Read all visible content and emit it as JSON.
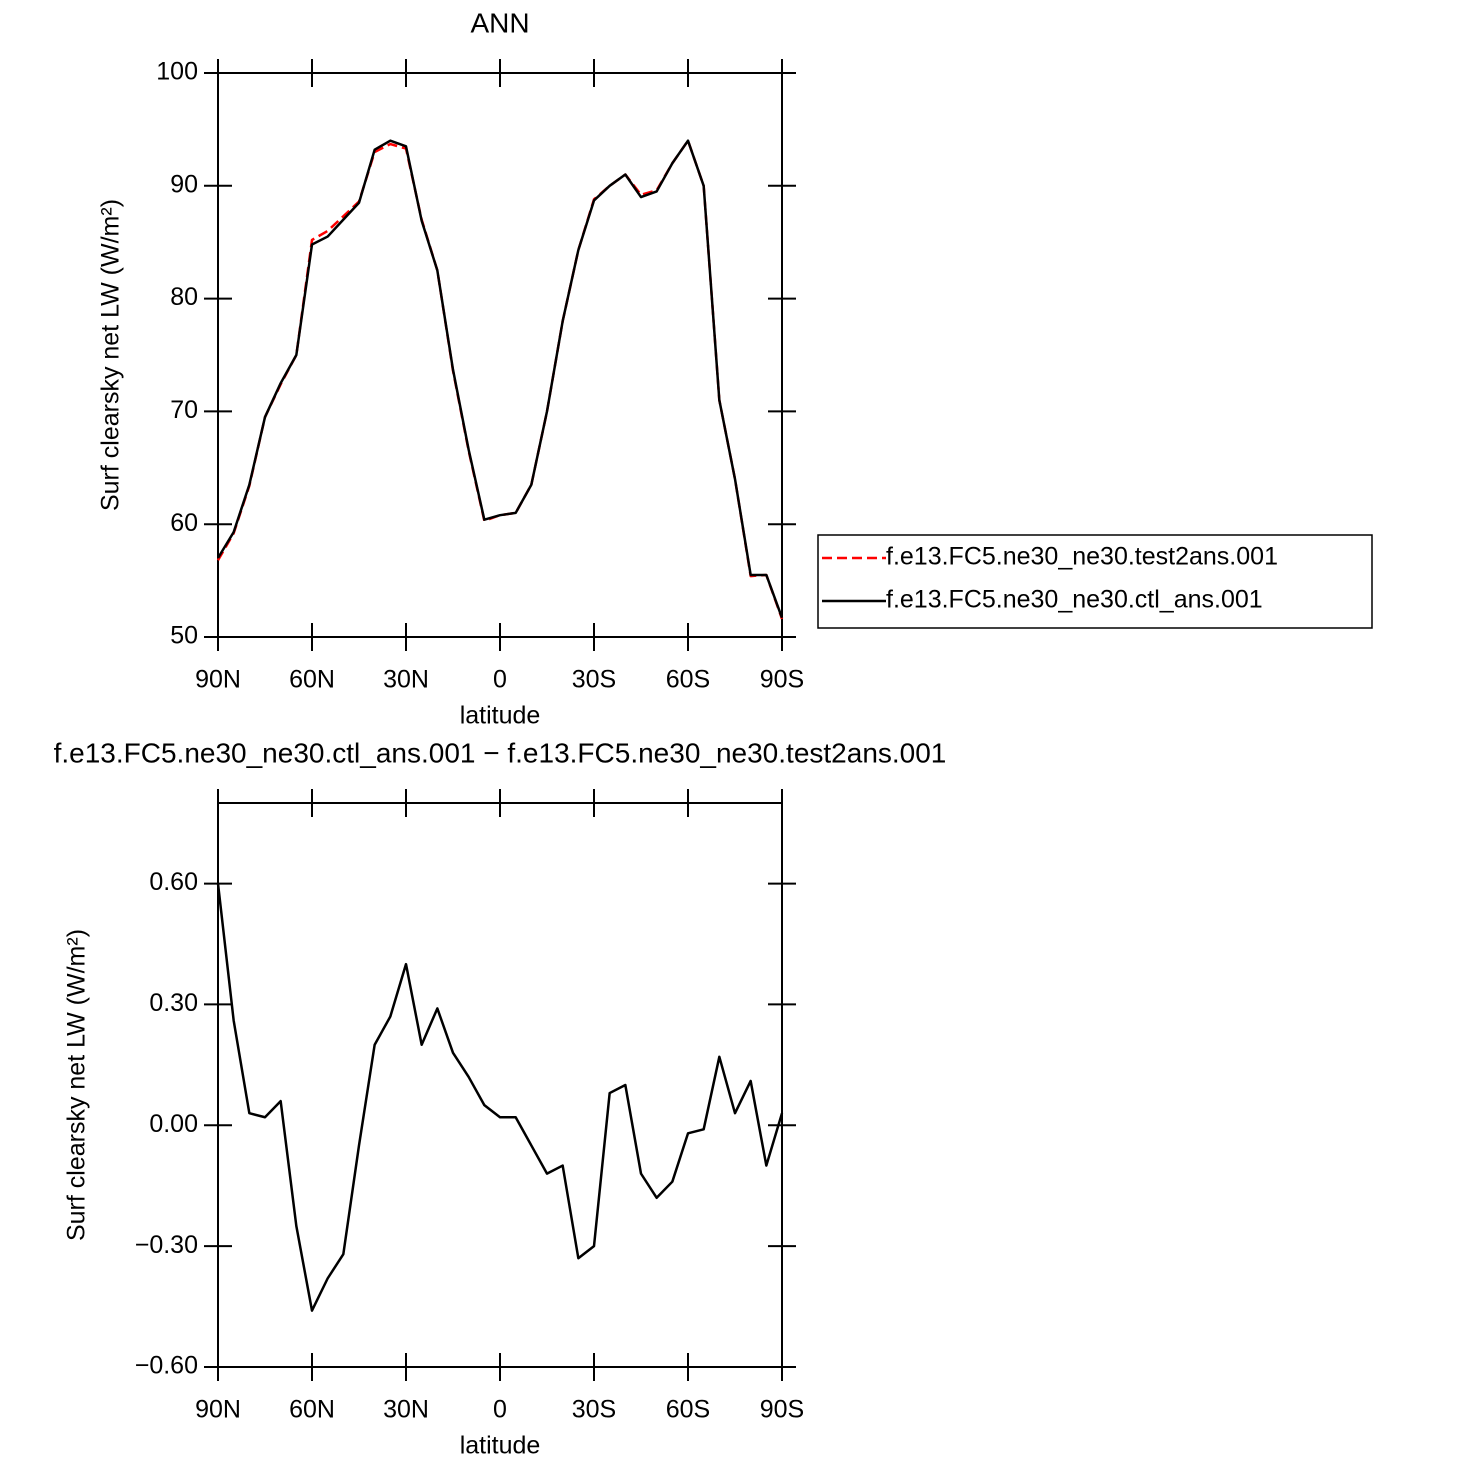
{
  "chart_data": [
    {
      "type": "line",
      "title": "ANN",
      "xlabel": "latitude",
      "ylabel": "Surf clearsky net LW (W/m²)",
      "x": [
        90,
        85,
        80,
        75,
        70,
        65,
        60,
        55,
        50,
        45,
        40,
        35,
        30,
        25,
        20,
        15,
        10,
        5,
        0,
        -5,
        -10,
        -15,
        -20,
        -25,
        -30,
        -35,
        -40,
        -45,
        -50,
        -55,
        -60,
        -65,
        -70,
        -75,
        -80,
        -85,
        -90
      ],
      "series": [
        {
          "name": "f.e13.FC5.ne30_ne30.test2ans.001",
          "color": "#ff0000",
          "line_style": "dashed",
          "values": [
            56.8,
            59.2,
            63.4,
            69.5,
            72.4,
            75,
            85.2,
            86,
            87.3,
            88.6,
            93,
            93.7,
            93.3,
            87,
            82.5,
            73.6,
            66.5,
            60.3,
            60.8,
            61,
            63.5,
            70,
            78,
            84.3,
            88.8,
            90,
            91,
            89.2,
            89.6,
            92,
            94,
            90,
            71,
            64,
            55.4,
            55.5,
            51.6
          ]
        },
        {
          "name": "f.e13.FC5.ne30_ne30.ctl_ans.001",
          "color": "#000000",
          "line_style": "solid",
          "values": [
            57,
            59.3,
            63.5,
            69.5,
            72.5,
            75,
            84.8,
            85.5,
            87,
            88.5,
            93.2,
            94,
            93.5,
            86.9,
            82.5,
            73.7,
            66.6,
            60.4,
            60.8,
            61,
            63.5,
            70,
            78,
            84.3,
            88.7,
            90,
            91,
            89,
            89.5,
            92,
            94,
            90,
            71,
            64,
            55.5,
            55.5,
            51.7
          ]
        }
      ],
      "legend": "right",
      "xlim": [
        90,
        -90
      ],
      "xticks": [
        {
          "value": 90,
          "label": "90N"
        },
        {
          "value": 60,
          "label": "60N"
        },
        {
          "value": 30,
          "label": "30N"
        },
        0,
        {
          "value": -30,
          "label": "30S"
        },
        {
          "value": -60,
          "label": "60S"
        },
        {
          "value": -90,
          "label": "90S"
        }
      ],
      "ylim": [
        50,
        100
      ],
      "yticks": [
        50,
        60,
        70,
        80,
        90,
        100
      ]
    },
    {
      "type": "line",
      "title": "f.e13.FC5.ne30_ne30.ctl_ans.001 − f.e13.FC5.ne30_ne30.test2ans.001",
      "xlabel": "latitude",
      "ylabel": "Surf clearsky net LW (W/m²)",
      "x": [
        90,
        85,
        80,
        75,
        70,
        65,
        60,
        55,
        50,
        45,
        40,
        35,
        30,
        25,
        20,
        15,
        10,
        5,
        0,
        -5,
        -10,
        -15,
        -20,
        -25,
        -30,
        -35,
        -40,
        -45,
        -50,
        -55,
        -60,
        -65,
        -70,
        -75,
        -80,
        -85,
        -90
      ],
      "series": [
        {
          "color": "#000000",
          "line_style": "solid",
          "values": [
            0.6,
            0.26,
            0.03,
            0.02,
            0.06,
            -0.25,
            -0.46,
            -0.38,
            -0.32,
            -0.05,
            0.2,
            0.27,
            0.4,
            0.2,
            0.29,
            0.18,
            0.12,
            0.05,
            0.02,
            0.02,
            -0.05,
            -0.12,
            -0.1,
            -0.33,
            -0.3,
            0.08,
            0.1,
            -0.12,
            -0.18,
            -0.14,
            -0.02,
            -0.01,
            0.17,
            0.03,
            0.11,
            -0.1,
            0.03
          ]
        }
      ],
      "xlim": [
        90,
        -90
      ],
      "xticks": [
        {
          "value": 90,
          "label": "90N"
        },
        {
          "value": 60,
          "label": "60N"
        },
        {
          "value": 30,
          "label": "30N"
        },
        0,
        {
          "value": -30,
          "label": "30S"
        },
        {
          "value": -60,
          "label": "60S"
        },
        {
          "value": -90,
          "label": "90S"
        }
      ],
      "ylim": [
        -0.6,
        0.8
      ],
      "yticks": [
        {
          "value": -0.6,
          "label": "−0.60"
        },
        {
          "value": -0.3,
          "label": "−0.30"
        },
        {
          "value": 0,
          "label": "0.00"
        },
        {
          "value": 0.3,
          "label": "0.30"
        },
        {
          "value": 0.6,
          "label": "0.60"
        }
      ]
    }
  ]
}
